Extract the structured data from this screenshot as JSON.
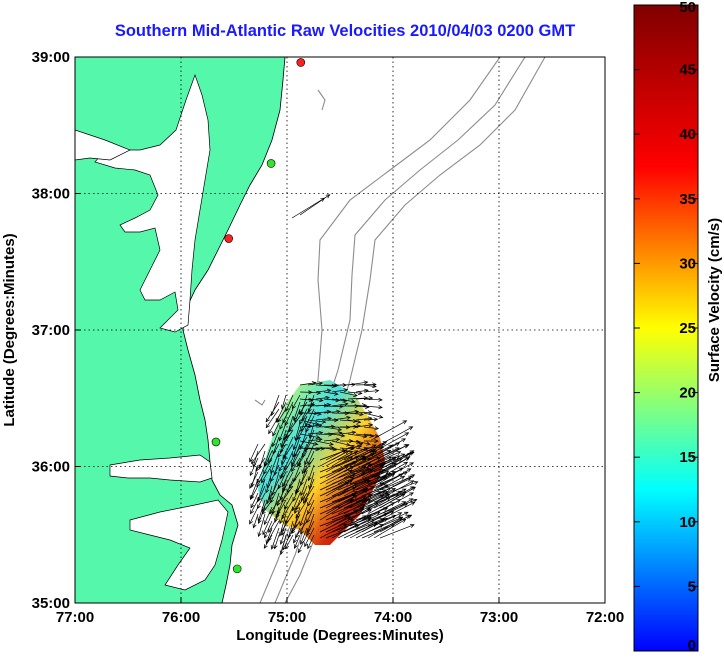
{
  "title": "Southern Mid-Atlantic Raw Velocities 2010/04/03 0200 GMT",
  "map": {
    "xlabel": "Longitude (Degrees:Minutes)",
    "ylabel": "Latitude (Degrees:Minutes)",
    "lon_range": [
      -77,
      -72
    ],
    "lat_range": [
      35,
      39
    ],
    "x_ticks": [
      {
        "lon": -77,
        "label": "77:00"
      },
      {
        "lon": -76,
        "label": "76:00"
      },
      {
        "lon": -75,
        "label": "75:00"
      },
      {
        "lon": -74,
        "label": "74:00"
      },
      {
        "lon": -73,
        "label": "73:00"
      },
      {
        "lon": -72,
        "label": "72:00"
      }
    ],
    "y_ticks": [
      {
        "lat": 35,
        "label": "35:00"
      },
      {
        "lat": 36,
        "label": "36:00"
      },
      {
        "lat": 37,
        "label": "37:00"
      },
      {
        "lat": 38,
        "label": "38:00"
      },
      {
        "lat": 39,
        "label": "39:00"
      }
    ],
    "grid": "dotted",
    "land_color": "#55f7aa",
    "bathymetry_color": "#8c8c8c",
    "stations": [
      {
        "lon": -74.87,
        "lat": 38.96,
        "color": "#ff2020"
      },
      {
        "lon": -75.15,
        "lat": 38.22,
        "color": "#2ee62e"
      },
      {
        "lon": -75.55,
        "lat": 37.67,
        "color": "#ff2020"
      },
      {
        "lon": -75.67,
        "lat": 36.18,
        "color": "#2ee62e"
      },
      {
        "lon": -75.47,
        "lat": 35.25,
        "color": "#2ee62e"
      }
    ]
  },
  "colorbar": {
    "label": "Surface Velocity (cm/s)",
    "min": 0,
    "max": 50,
    "ticks": [
      0,
      5,
      10,
      15,
      20,
      25,
      30,
      35,
      40,
      45,
      50
    ]
  }
}
